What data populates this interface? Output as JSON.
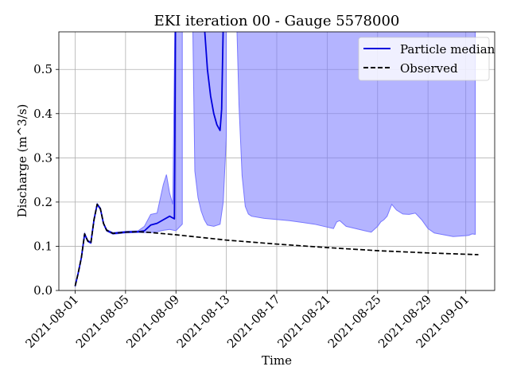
{
  "chart_data": {
    "type": "line",
    "title": "EKI iteration 00 - Gauge 5578000",
    "xlabel": "Time",
    "ylabel": "Discharge (m^3/s)",
    "x_axis_type": "date",
    "xlim": [
      "2021-07-30T17:00",
      "2021-09-03T07:00"
    ],
    "ylim": [
      0.0,
      0.585
    ],
    "x_ticks": [
      "2021-08-01",
      "2021-08-05",
      "2021-08-09",
      "2021-08-13",
      "2021-08-17",
      "2021-08-21",
      "2021-08-25",
      "2021-08-29",
      "2021-09-01"
    ],
    "y_ticks": [
      "0.0",
      "0.1",
      "0.2",
      "0.3",
      "0.4",
      "0.5"
    ],
    "grid": true,
    "legend_position": "top-right",
    "colors": {
      "median": "#0000dd",
      "observed": "#000000",
      "band": "#7777ff"
    },
    "series": [
      {
        "name": "Particle median",
        "style": "solid",
        "points": [
          [
            "2021-08-01T00:00",
            0.01
          ],
          [
            "2021-08-01T06:00",
            0.04
          ],
          [
            "2021-08-01T12:00",
            0.075
          ],
          [
            "2021-08-01T18:00",
            0.128
          ],
          [
            "2021-08-02T00:00",
            0.112
          ],
          [
            "2021-08-02T06:00",
            0.108
          ],
          [
            "2021-08-02T12:00",
            0.16
          ],
          [
            "2021-08-02T18:00",
            0.195
          ],
          [
            "2021-08-03T00:00",
            0.185
          ],
          [
            "2021-08-03T06:00",
            0.152
          ],
          [
            "2021-08-03T12:00",
            0.136
          ],
          [
            "2021-08-04T00:00",
            0.129
          ],
          [
            "2021-08-05T00:00",
            0.132
          ],
          [
            "2021-08-06T00:00",
            0.133
          ],
          [
            "2021-08-06T12:00",
            0.135
          ],
          [
            "2021-08-07T00:00",
            0.148
          ],
          [
            "2021-08-07T12:00",
            0.152
          ],
          [
            "2021-08-08T00:00",
            0.16
          ],
          [
            "2021-08-08T12:00",
            0.168
          ],
          [
            "2021-08-08T21:00",
            0.162
          ],
          [
            "2021-08-08T22:00",
            0.35
          ],
          [
            "2021-08-08T23:00",
            0.6
          ]
        ]
      },
      {
        "name": "",
        "style": "solid",
        "points": [
          [
            "2021-08-11T06:00",
            0.6
          ],
          [
            "2021-08-11T12:00",
            0.5
          ],
          [
            "2021-08-11T18:00",
            0.44
          ],
          [
            "2021-08-12T00:00",
            0.4
          ],
          [
            "2021-08-12T06:00",
            0.375
          ],
          [
            "2021-08-12T12:00",
            0.362
          ],
          [
            "2021-08-12T15:00",
            0.41
          ],
          [
            "2021-08-12T18:00",
            0.6
          ]
        ]
      },
      {
        "name": "Observed",
        "style": "dashed",
        "points": [
          [
            "2021-08-01T00:00",
            0.01
          ],
          [
            "2021-08-01T06:00",
            0.04
          ],
          [
            "2021-08-01T12:00",
            0.075
          ],
          [
            "2021-08-01T18:00",
            0.128
          ],
          [
            "2021-08-02T00:00",
            0.112
          ],
          [
            "2021-08-02T06:00",
            0.108
          ],
          [
            "2021-08-02T12:00",
            0.16
          ],
          [
            "2021-08-02T18:00",
            0.195
          ],
          [
            "2021-08-03T00:00",
            0.185
          ],
          [
            "2021-08-03T06:00",
            0.152
          ],
          [
            "2021-08-03T12:00",
            0.136
          ],
          [
            "2021-08-04T00:00",
            0.129
          ],
          [
            "2021-08-05T00:00",
            0.132
          ],
          [
            "2021-08-06T00:00",
            0.133
          ],
          [
            "2021-08-07T00:00",
            0.131
          ],
          [
            "2021-08-09T00:00",
            0.126
          ],
          [
            "2021-08-13T00:00",
            0.114
          ],
          [
            "2021-08-17T00:00",
            0.105
          ],
          [
            "2021-08-21T00:00",
            0.097
          ],
          [
            "2021-08-25T00:00",
            0.09
          ],
          [
            "2021-08-29T00:00",
            0.085
          ],
          [
            "2021-09-02T00:00",
            0.081
          ]
        ]
      }
    ],
    "uncertainty_band": {
      "upper": [
        [
          "2021-08-01T00:00",
          0.012
        ],
        [
          "2021-08-01T06:00",
          0.042
        ],
        [
          "2021-08-01T12:00",
          0.077
        ],
        [
          "2021-08-01T18:00",
          0.13
        ],
        [
          "2021-08-02T00:00",
          0.114
        ],
        [
          "2021-08-02T06:00",
          0.11
        ],
        [
          "2021-08-02T12:00",
          0.162
        ],
        [
          "2021-08-02T18:00",
          0.197
        ],
        [
          "2021-08-03T00:00",
          0.187
        ],
        [
          "2021-08-03T06:00",
          0.154
        ],
        [
          "2021-08-03T12:00",
          0.138
        ],
        [
          "2021-08-04T00:00",
          0.131
        ],
        [
          "2021-08-05T00:00",
          0.134
        ],
        [
          "2021-08-06T00:00",
          0.135
        ],
        [
          "2021-08-06T12:00",
          0.145
        ],
        [
          "2021-08-07T00:00",
          0.172
        ],
        [
          "2021-08-07T12:00",
          0.175
        ],
        [
          "2021-08-08T00:00",
          0.24
        ],
        [
          "2021-08-08T06:00",
          0.262
        ],
        [
          "2021-08-08T12:00",
          0.22
        ],
        [
          "2021-08-08T18:00",
          0.195
        ],
        [
          "2021-08-08T22:00",
          0.6
        ],
        [
          "2021-08-09T12:00",
          0.6
        ],
        [
          "2021-09-01T18:00",
          0.6
        ]
      ],
      "lower": [
        [
          "2021-09-01T18:00",
          0.127
        ],
        [
          "2021-09-01T12:00",
          0.128
        ],
        [
          "2021-09-01T06:00",
          0.125
        ],
        [
          "2021-09-01T00:00",
          0.124
        ],
        [
          "2021-08-31T00:00",
          0.122
        ],
        [
          "2021-08-29T12:00",
          0.13
        ],
        [
          "2021-08-29T00:00",
          0.14
        ],
        [
          "2021-08-28T12:00",
          0.16
        ],
        [
          "2021-08-28T00:00",
          0.175
        ],
        [
          "2021-08-27T12:00",
          0.172
        ],
        [
          "2021-08-27T00:00",
          0.173
        ],
        [
          "2021-08-26T12:00",
          0.182
        ],
        [
          "2021-08-26T03:00",
          0.195
        ],
        [
          "2021-08-25T18:00",
          0.168
        ],
        [
          "2021-08-25T12:00",
          0.16
        ],
        [
          "2021-08-25T06:00",
          0.155
        ],
        [
          "2021-08-25T00:00",
          0.145
        ],
        [
          "2021-08-24T12:00",
          0.132
        ],
        [
          "2021-08-24T00:00",
          0.135
        ],
        [
          "2021-08-22T12:00",
          0.145
        ],
        [
          "2021-08-22T00:00",
          0.158
        ],
        [
          "2021-08-21T18:00",
          0.155
        ],
        [
          "2021-08-21T12:00",
          0.14
        ],
        [
          "2021-08-20T00:00",
          0.15
        ],
        [
          "2021-08-18T00:00",
          0.158
        ],
        [
          "2021-08-16T00:00",
          0.163
        ],
        [
          "2021-08-15T00:00",
          0.168
        ],
        [
          "2021-08-14T18:00",
          0.173
        ],
        [
          "2021-08-14T12:00",
          0.19
        ],
        [
          "2021-08-14T06:00",
          0.26
        ],
        [
          "2021-08-14T00:00",
          0.42
        ],
        [
          "2021-08-13T20:00",
          0.6
        ],
        [
          "2021-08-13T00:00",
          0.6
        ],
        [
          "2021-08-13T00:00",
          0.35
        ],
        [
          "2021-08-12T18:00",
          0.2
        ],
        [
          "2021-08-12T12:00",
          0.15
        ],
        [
          "2021-08-12T00:00",
          0.145
        ],
        [
          "2021-08-11T12:00",
          0.148
        ],
        [
          "2021-08-11T06:00",
          0.16
        ],
        [
          "2021-08-11T00:00",
          0.18
        ],
        [
          "2021-08-10T18:00",
          0.21
        ],
        [
          "2021-08-10T12:00",
          0.27
        ],
        [
          "2021-08-10T08:00",
          0.6
        ],
        [
          "2021-08-09T12:00",
          0.6
        ],
        [
          "2021-08-09T12:00",
          0.15
        ],
        [
          "2021-08-09T00:00",
          0.135
        ],
        [
          "2021-08-08T12:00",
          0.138
        ],
        [
          "2021-08-08T00:00",
          0.136
        ],
        [
          "2021-08-07T12:00",
          0.133
        ],
        [
          "2021-08-07T00:00",
          0.131
        ],
        [
          "2021-08-06T00:00",
          0.131
        ],
        [
          "2021-08-05T00:00",
          0.13
        ],
        [
          "2021-08-04T00:00",
          0.127
        ],
        [
          "2021-08-03T12:00",
          0.134
        ],
        [
          "2021-08-03T06:00",
          0.15
        ],
        [
          "2021-08-03T00:00",
          0.183
        ],
        [
          "2021-08-02T18:00",
          0.193
        ],
        [
          "2021-08-02T12:00",
          0.158
        ],
        [
          "2021-08-02T06:00",
          0.106
        ],
        [
          "2021-08-02T00:00",
          0.11
        ],
        [
          "2021-08-01T18:00",
          0.126
        ],
        [
          "2021-08-01T12:00",
          0.073
        ],
        [
          "2021-08-01T06:00",
          0.038
        ],
        [
          "2021-08-01T00:00",
          0.008
        ]
      ]
    }
  }
}
